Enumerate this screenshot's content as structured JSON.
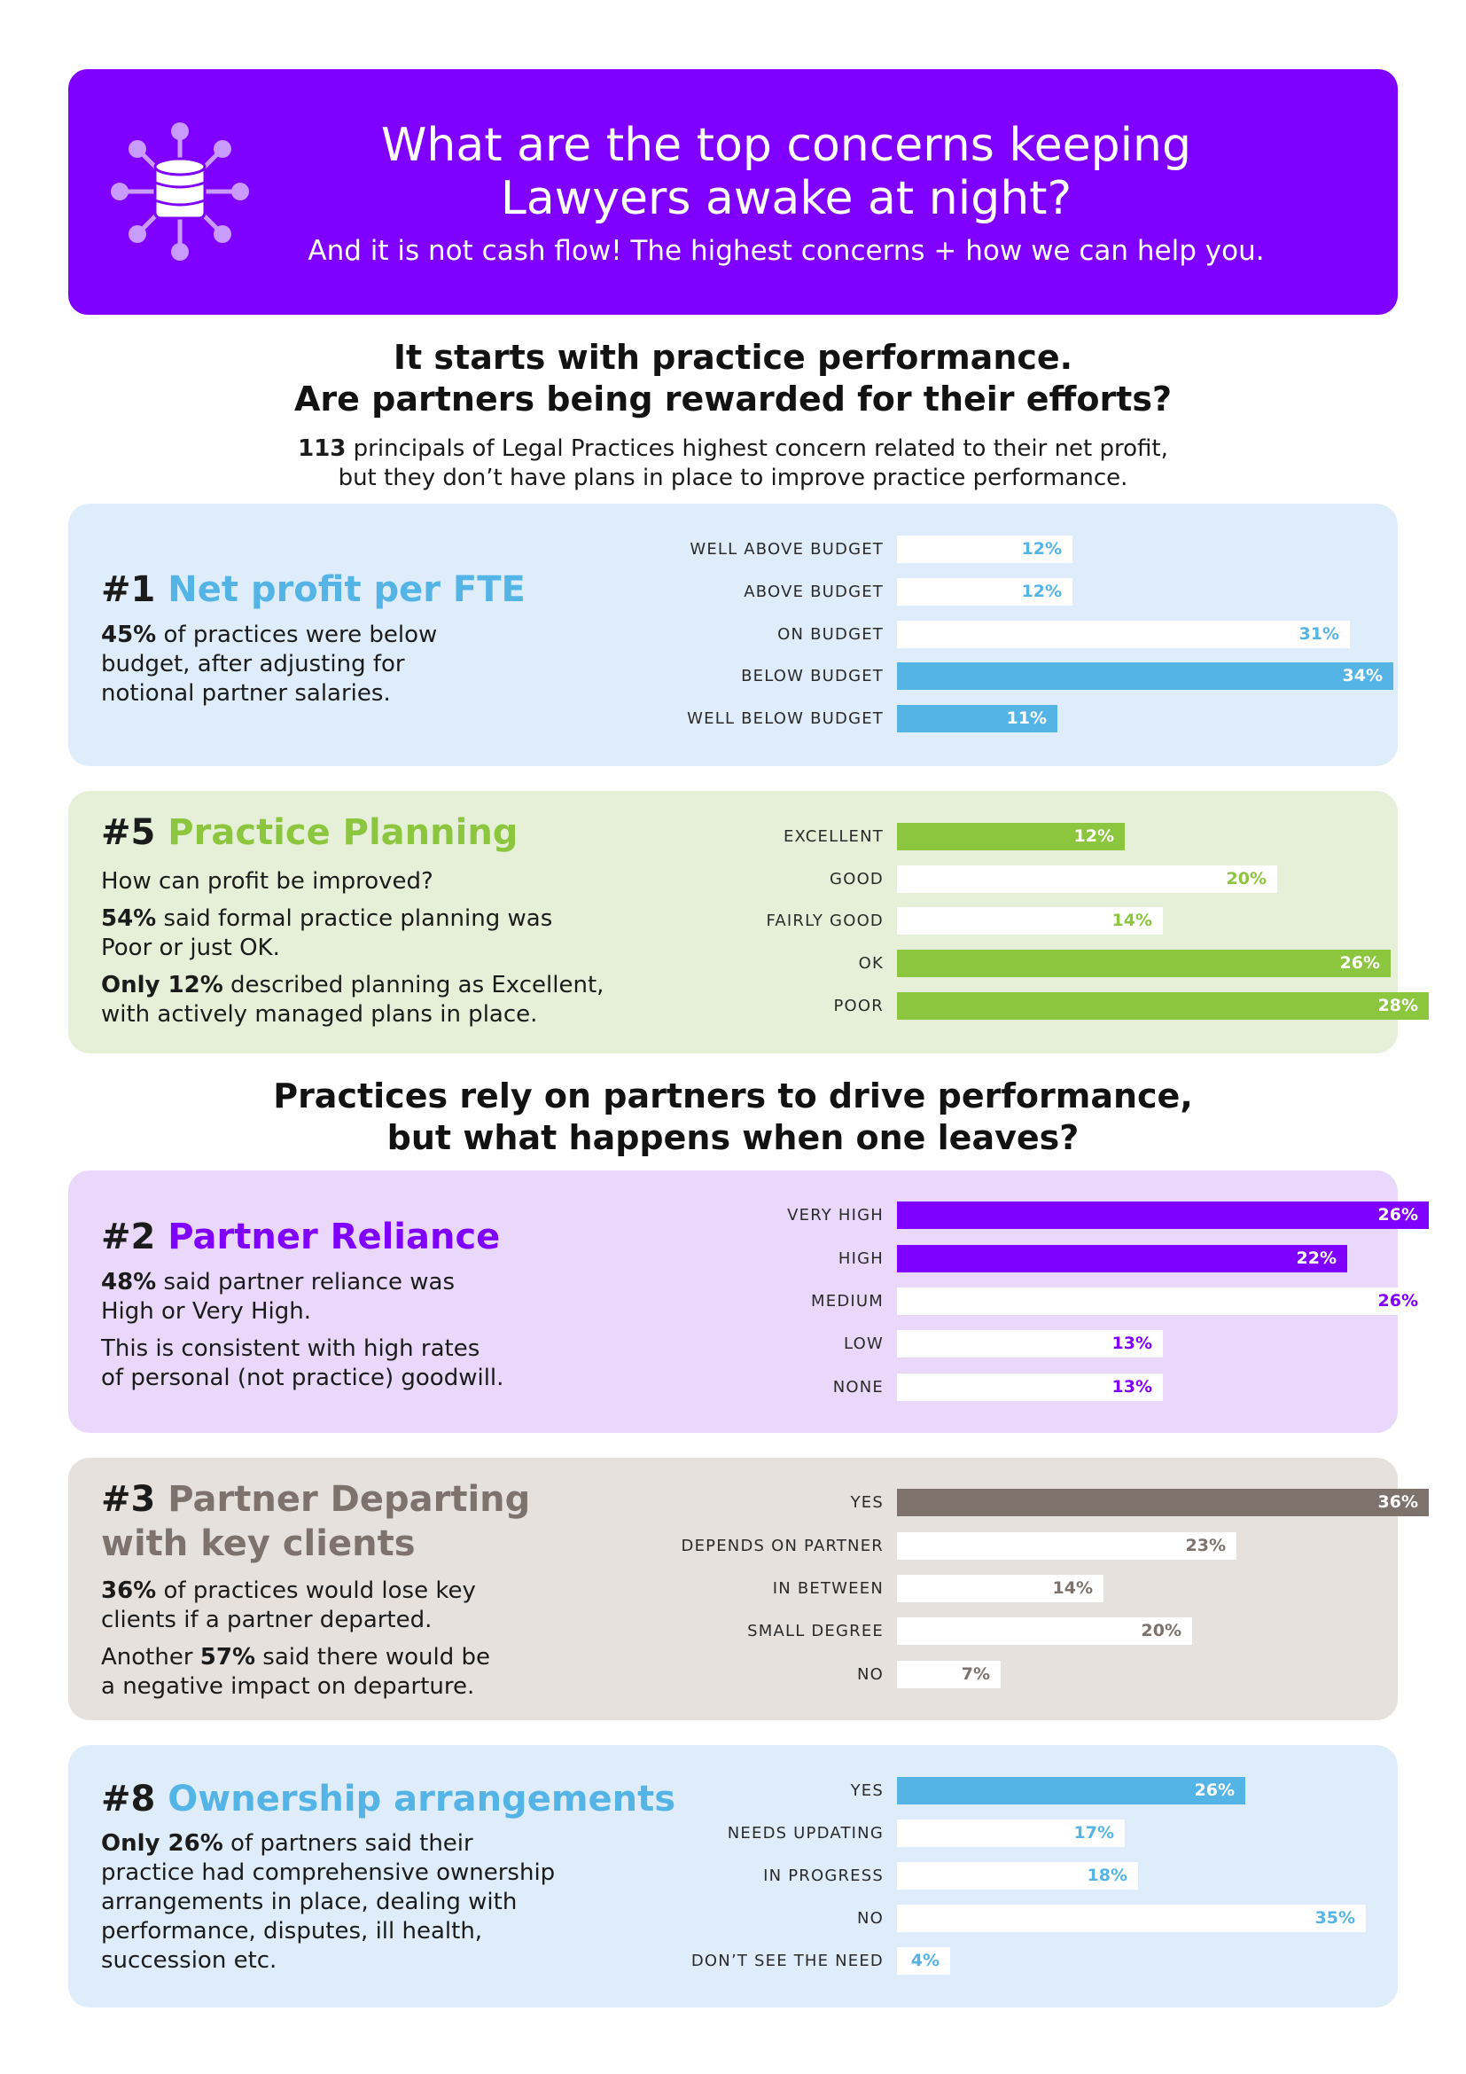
{
  "header": {
    "title_lines": [
      "What are the top concerns keeping",
      "Lawyers awake at night?"
    ],
    "subtitle": "And it is not cash flow!  The highest concerns + how we can help you.",
    "icon": "database-network-icon"
  },
  "section1": {
    "heading_lines": [
      "It starts with practice performance.",
      "Are partners being rewarded for their efforts?"
    ],
    "intro_count": "113",
    "intro_line1_rest": " principals of Legal Practices highest concern related to their net profit,",
    "intro_line2": "but they don’t have plans in place to improve practice performance."
  },
  "section2": {
    "heading_lines": [
      "Practices rely on partners to drive performance,",
      "but what happens when one leaves?"
    ]
  },
  "colors": {
    "purple": "#7f00ff",
    "blue": "#55b4e6",
    "green": "#8cc63f",
    "taupe": "#7d736c",
    "panel_blue": "#dfedfa",
    "panel_green": "#e6f0d8",
    "panel_purple": "#ead8fb",
    "panel_taupe": "#e6e1dd",
    "white_bar": "#ffffff"
  },
  "panels": [
    {
      "id": "net-profit",
      "number": "#1",
      "title_lines": [
        "Net profit per FTE"
      ],
      "paragraphs": [
        [
          [
            {
              "b": "45%"
            },
            {
              "t": " of practices were below"
            }
          ],
          [
            {
              "t": "budget, after adjusting for"
            }
          ],
          [
            {
              "t": "notional partner salaries."
            }
          ]
        ]
      ]
    },
    {
      "id": "practice-planning",
      "number": "#5",
      "title_lines": [
        "Practice Planning"
      ],
      "paragraphs": [
        [
          [
            {
              "t": "How can profit be improved?"
            }
          ]
        ],
        [
          [
            {
              "b": "54%"
            },
            {
              "t": " said formal practice planning was"
            }
          ],
          [
            {
              "t": "Poor or just OK."
            }
          ]
        ],
        [
          [
            {
              "b": "Only 12%"
            },
            {
              "t": " described planning as Excellent,"
            }
          ],
          [
            {
              "t": "with actively managed plans in place."
            }
          ]
        ]
      ]
    },
    {
      "id": "partner-reliance",
      "number": "#2",
      "title_lines": [
        "Partner Reliance"
      ],
      "paragraphs": [
        [
          [
            {
              "b": "48%"
            },
            {
              "t": " said partner reliance was"
            }
          ],
          [
            {
              "t": "High or Very High."
            }
          ]
        ],
        [
          [
            {
              "t": "This is consistent with high rates"
            }
          ],
          [
            {
              "t": "of personal (not practice) goodwill."
            }
          ]
        ]
      ]
    },
    {
      "id": "partner-departing",
      "number": "#3",
      "title_lines": [
        "Partner Departing",
        "with key clients"
      ],
      "paragraphs": [
        [
          [
            {
              "b": "36%"
            },
            {
              "t": " of practices would lose key"
            }
          ],
          [
            {
              "t": "clients if a partner departed."
            }
          ]
        ],
        [
          [
            {
              "t": "Another "
            },
            {
              "b": "57%"
            },
            {
              "t": " said there would be"
            }
          ],
          [
            {
              "t": "a negative impact on departure."
            }
          ]
        ]
      ]
    },
    {
      "id": "ownership",
      "number": "#8",
      "title_lines": [
        "Ownership arrangements"
      ],
      "paragraphs": [
        [
          [
            {
              "b": "Only 26%"
            },
            {
              "t": " of partners said their"
            }
          ],
          [
            {
              "t": "practice had comprehensive ownership"
            }
          ],
          [
            {
              "t": "arrangements in place, dealing with"
            }
          ],
          [
            {
              "t": "performance, disputes, ill health,"
            }
          ],
          [
            {
              "t": "succession etc."
            }
          ]
        ]
      ]
    }
  ],
  "chart_data": [
    {
      "type": "bar",
      "orientation": "horizontal",
      "title": "Net profit per FTE",
      "categories": [
        "WELL ABOVE BUDGET",
        "ABOVE BUDGET",
        "ON BUDGET",
        "BELOW BUDGET",
        "WELL BELOW BUDGET"
      ],
      "values": [
        12,
        12,
        31,
        34,
        11
      ],
      "labels": [
        "12%",
        "12%",
        "31%",
        "34%",
        "11%"
      ],
      "filled": [
        false,
        false,
        false,
        true,
        true
      ],
      "xlim": [
        0,
        36
      ]
    },
    {
      "type": "bar",
      "orientation": "horizontal",
      "title": "Practice Planning",
      "categories": [
        "EXCELLENT",
        "GOOD",
        "FAIRLY GOOD",
        "OK",
        "POOR"
      ],
      "values": [
        12,
        20,
        14,
        26,
        28
      ],
      "labels": [
        "12%",
        "20%",
        "14%",
        "26%",
        "28%"
      ],
      "filled": [
        true,
        false,
        false,
        true,
        true
      ],
      "xlim": [
        0,
        28
      ]
    },
    {
      "type": "bar",
      "orientation": "horizontal",
      "title": "Partner Reliance",
      "categories": [
        "VERY HIGH",
        "HIGH",
        "MEDIUM",
        "LOW",
        "NONE"
      ],
      "values": [
        26,
        22,
        26,
        13,
        13
      ],
      "labels": [
        "26%",
        "22%",
        "26%",
        "13%",
        "13%"
      ],
      "filled": [
        true,
        true,
        false,
        false,
        false
      ],
      "xlim": [
        0,
        26
      ]
    },
    {
      "type": "bar",
      "orientation": "horizontal",
      "title": "Partner Departing with key clients",
      "categories": [
        "YES",
        "DEPENDS ON PARTNER",
        "IN BETWEEN",
        "SMALL DEGREE",
        "NO"
      ],
      "values": [
        36,
        23,
        14,
        20,
        7
      ],
      "labels": [
        "36%",
        "23%",
        "14%",
        "20%",
        "7%"
      ],
      "filled": [
        true,
        false,
        false,
        false,
        false
      ],
      "xlim": [
        0,
        36
      ]
    },
    {
      "type": "bar",
      "orientation": "horizontal",
      "title": "Ownership arrangements",
      "categories": [
        "YES",
        "NEEDS UPDATING",
        "IN PROGRESS",
        "NO",
        "DON’T SEE THE NEED"
      ],
      "values": [
        26,
        17,
        18,
        35,
        4
      ],
      "labels": [
        "26%",
        "17%",
        "18%",
        "35%",
        "4%"
      ],
      "filled": [
        true,
        false,
        false,
        false,
        false
      ],
      "xlim": [
        0,
        40
      ]
    }
  ]
}
